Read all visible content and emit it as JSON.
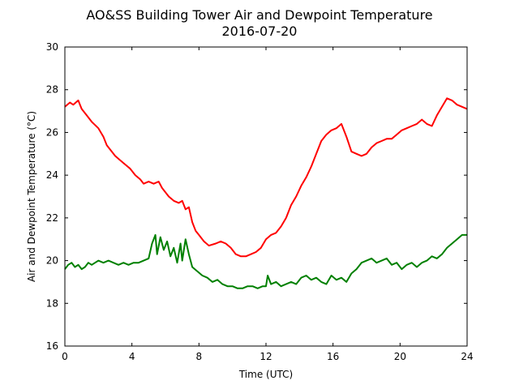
{
  "chart_data": {
    "type": "line",
    "title": "AO&SS Building Tower Air and Dewpoint Temperature",
    "subtitle": "2016-07-20",
    "xlabel": "Time (UTC)",
    "ylabel": "Air and Dewpoint Temperature (°C)",
    "xlim": [
      0,
      24
    ],
    "ylim": [
      16,
      30
    ],
    "xticks": [
      0,
      4,
      8,
      12,
      16,
      20,
      24
    ],
    "yticks": [
      16,
      18,
      20,
      22,
      24,
      26,
      28,
      30
    ],
    "grid": false,
    "series": [
      {
        "color": "#ff0000",
        "x": [
          0,
          0.3,
          0.5,
          0.8,
          1.0,
          1.3,
          1.6,
          2.0,
          2.3,
          2.5,
          2.8,
          3.0,
          3.3,
          3.6,
          3.9,
          4.2,
          4.5,
          4.7,
          5.0,
          5.3,
          5.6,
          5.8,
          6.0,
          6.2,
          6.5,
          6.8,
          7.0,
          7.2,
          7.4,
          7.6,
          7.8,
          8.0,
          8.3,
          8.6,
          9.0,
          9.3,
          9.6,
          9.9,
          10.2,
          10.5,
          10.8,
          11.1,
          11.4,
          11.7,
          12.0,
          12.3,
          12.6,
          12.9,
          13.2,
          13.5,
          13.8,
          14.1,
          14.4,
          14.7,
          15.0,
          15.3,
          15.6,
          15.9,
          16.2,
          16.5,
          16.8,
          17.1,
          17.4,
          17.7,
          18.0,
          18.3,
          18.6,
          18.9,
          19.2,
          19.5,
          19.8,
          20.1,
          20.4,
          20.7,
          21.0,
          21.3,
          21.6,
          21.9,
          22.2,
          22.5,
          22.8,
          23.1,
          23.4,
          23.7,
          24.0
        ],
        "values": [
          27.2,
          27.4,
          27.3,
          27.5,
          27.1,
          26.8,
          26.5,
          26.2,
          25.8,
          25.4,
          25.1,
          24.9,
          24.7,
          24.5,
          24.3,
          24.0,
          23.8,
          23.6,
          23.7,
          23.6,
          23.7,
          23.4,
          23.2,
          23.0,
          22.8,
          22.7,
          22.8,
          22.4,
          22.5,
          21.8,
          21.4,
          21.2,
          20.9,
          20.7,
          20.8,
          20.9,
          20.8,
          20.6,
          20.3,
          20.2,
          20.2,
          20.3,
          20.4,
          20.6,
          21.0,
          21.2,
          21.3,
          21.6,
          22.0,
          22.6,
          23.0,
          23.5,
          23.9,
          24.4,
          25.0,
          25.6,
          25.9,
          26.1,
          26.2,
          26.4,
          25.8,
          25.1,
          25.0,
          24.9,
          25.0,
          25.3,
          25.5,
          25.6,
          25.7,
          25.7,
          25.9,
          26.1,
          26.2,
          26.3,
          26.4,
          26.6,
          26.4,
          26.3,
          26.8,
          27.2,
          27.6,
          27.5,
          27.3,
          27.2,
          27.1
        ]
      },
      {
        "color": "#008000",
        "x": [
          0,
          0.2,
          0.4,
          0.6,
          0.8,
          1.0,
          1.2,
          1.4,
          1.6,
          1.8,
          2.0,
          2.3,
          2.6,
          2.9,
          3.2,
          3.5,
          3.8,
          4.1,
          4.4,
          4.7,
          5.0,
          5.2,
          5.4,
          5.5,
          5.7,
          5.9,
          6.1,
          6.3,
          6.5,
          6.7,
          6.9,
          7.0,
          7.2,
          7.4,
          7.6,
          7.9,
          8.2,
          8.5,
          8.8,
          9.1,
          9.4,
          9.7,
          10.0,
          10.3,
          10.6,
          10.9,
          11.2,
          11.5,
          11.8,
          12.0,
          12.1,
          12.3,
          12.6,
          12.9,
          13.2,
          13.5,
          13.8,
          14.1,
          14.4,
          14.7,
          15.0,
          15.3,
          15.6,
          15.9,
          16.2,
          16.5,
          16.8,
          17.1,
          17.4,
          17.7,
          18.0,
          18.3,
          18.6,
          18.9,
          19.2,
          19.5,
          19.8,
          20.1,
          20.4,
          20.7,
          21.0,
          21.3,
          21.6,
          21.9,
          22.2,
          22.5,
          22.8,
          23.1,
          23.4,
          23.7,
          24.0
        ],
        "values": [
          19.6,
          19.8,
          19.9,
          19.7,
          19.8,
          19.6,
          19.7,
          19.9,
          19.8,
          19.9,
          20.0,
          19.9,
          20.0,
          19.9,
          19.8,
          19.9,
          19.8,
          19.9,
          19.9,
          20.0,
          20.1,
          20.8,
          21.2,
          20.3,
          21.1,
          20.5,
          20.9,
          20.2,
          20.6,
          19.9,
          20.8,
          20.0,
          21.0,
          20.3,
          19.7,
          19.5,
          19.3,
          19.2,
          19.0,
          19.1,
          18.9,
          18.8,
          18.8,
          18.7,
          18.7,
          18.8,
          18.8,
          18.7,
          18.8,
          18.8,
          19.3,
          18.9,
          19.0,
          18.8,
          18.9,
          19.0,
          18.9,
          19.2,
          19.3,
          19.1,
          19.2,
          19.0,
          18.9,
          19.3,
          19.1,
          19.2,
          19.0,
          19.4,
          19.6,
          19.9,
          20.0,
          20.1,
          19.9,
          20.0,
          20.1,
          19.8,
          19.9,
          19.6,
          19.8,
          19.9,
          19.7,
          19.9,
          20.0,
          20.2,
          20.1,
          20.3,
          20.6,
          20.8,
          21.0,
          21.2,
          21.2
        ]
      }
    ]
  }
}
